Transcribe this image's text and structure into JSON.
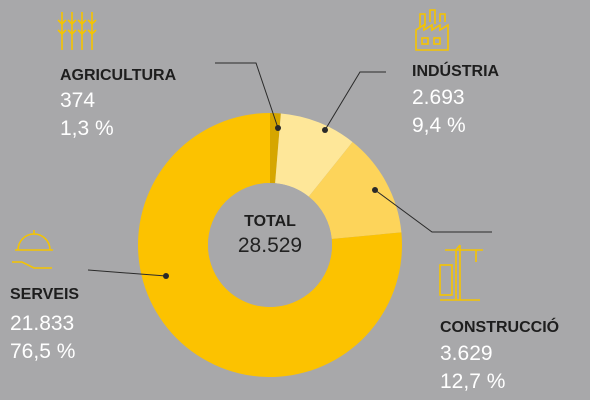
{
  "chart_data": {
    "type": "donut",
    "categories": [
      "AGRICULTURA",
      "INDÚSTRIA",
      "CONSTRUCCIÓ",
      "SERVEIS"
    ],
    "values": [
      374,
      2693,
      3629,
      21833
    ],
    "value_labels": [
      "374",
      "2.693",
      "3.629",
      "21.833"
    ],
    "percents": [
      {
        "value": 1.3,
        "label": "1,3 %"
      },
      {
        "value": 9.4,
        "label": "9,4 %"
      },
      {
        "value": 12.7,
        "label": "12,7 %"
      },
      {
        "value": 76.5,
        "label": "76,5 %"
      }
    ],
    "colors": [
      "#d6a600",
      "#fee799",
      "#fdd45a",
      "#fcc200"
    ],
    "total": {
      "label": "TOTAL",
      "value": 28529,
      "value_label": "28.529"
    }
  }
}
